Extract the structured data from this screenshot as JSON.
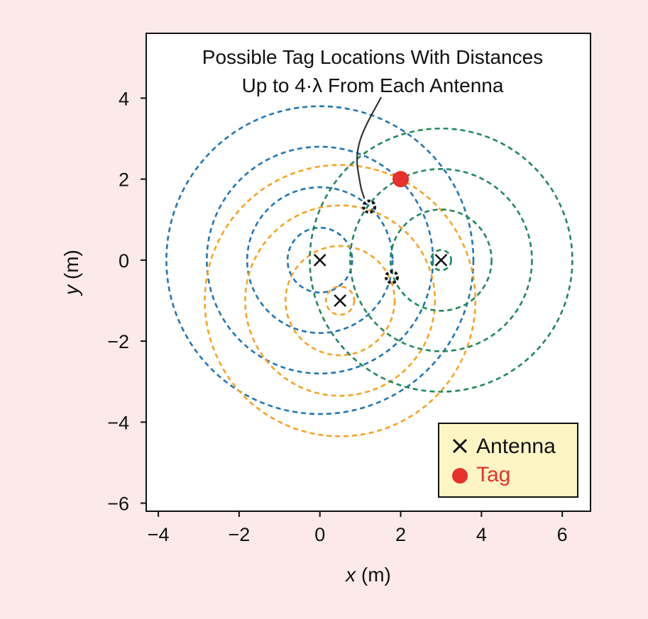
{
  "chart_data": {
    "type": "scatter",
    "title": "",
    "xlabel": {
      "italic": "x",
      "unit": " (m)"
    },
    "ylabel": {
      "italic": "y",
      "unit": " (m)"
    },
    "xlim": [
      -4.3,
      6.7
    ],
    "ylim": [
      -6.2,
      5.6
    ],
    "xticks": [
      -4,
      -2,
      0,
      2,
      4,
      6
    ],
    "yticks": [
      -6,
      -4,
      -2,
      0,
      2,
      4
    ],
    "xtick_labels": [
      "−4",
      "−2",
      "0",
      "2",
      "4",
      "6"
    ],
    "ytick_labels": [
      "−6",
      "−4",
      "−2",
      "0",
      "2",
      "4"
    ],
    "grid": false,
    "colors": {
      "blue": "#2176b4",
      "orange": "#f5a323",
      "green": "#22885a",
      "tag": "#e8312a",
      "black": "#111111",
      "legend_bg": "#fdf6c4"
    },
    "antennas": [
      {
        "x": 0.0,
        "y": 0.0,
        "color": "blue",
        "radii": [
          0.8,
          1.8,
          2.8,
          3.8
        ]
      },
      {
        "x": 0.5,
        "y": -1.0,
        "color": "orange",
        "radii": [
          0.35,
          1.35,
          2.35,
          3.35
        ]
      },
      {
        "x": 3.0,
        "y": 0.0,
        "color": "green",
        "radii": [
          0.25,
          1.25,
          2.25,
          3.25
        ]
      }
    ],
    "tag": {
      "x": 2.0,
      "y": 2.0
    },
    "candidate_locations": [
      {
        "x": 1.22,
        "y": 1.32
      },
      {
        "x": 1.78,
        "y": -0.42
      }
    ],
    "annotation": {
      "lines": [
        "Possible Tag Locations With Distances",
        "Up to 4·λ From Each Antenna"
      ],
      "points_to": {
        "x": 1.1,
        "y": 1.52
      }
    },
    "legend": {
      "position": "bottom-right",
      "items": [
        {
          "label": "Antenna",
          "marker": "x",
          "color": "black"
        },
        {
          "label": "Tag",
          "marker": "o",
          "color": "tag"
        }
      ]
    }
  }
}
